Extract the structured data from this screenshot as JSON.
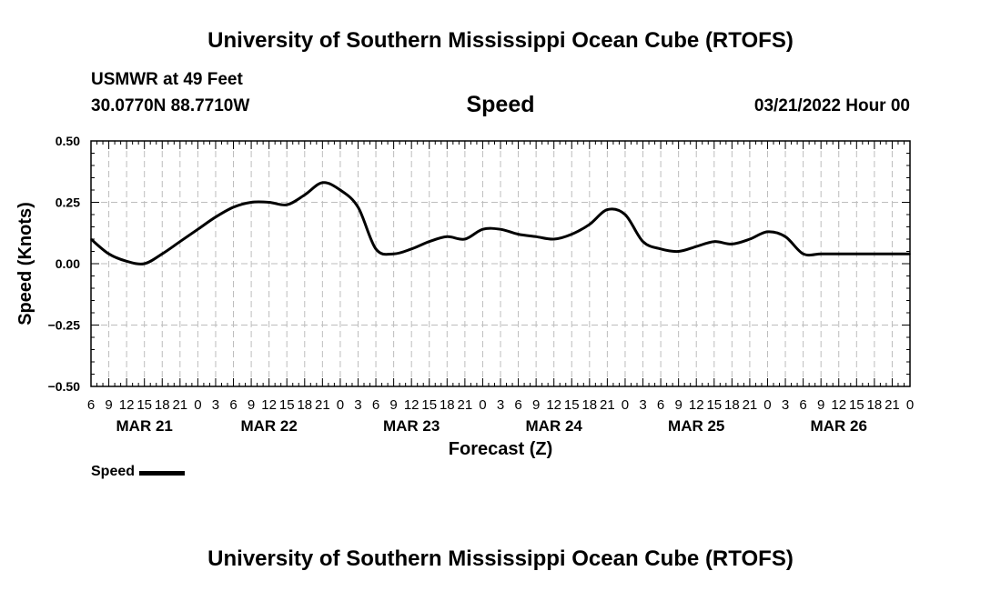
{
  "page": {
    "title_top": "University of Southern Mississippi Ocean Cube (RTOFS)",
    "title_bottom": "University of Southern Mississippi Ocean Cube (RTOFS)",
    "station": "USMWR at 49 Feet",
    "coords": "30.0770N  88.7710W",
    "variable": "Speed",
    "date": "03/21/2022 Hour 00"
  },
  "legend": {
    "label": "Speed",
    "color": "#000000"
  },
  "chart_data": {
    "type": "line",
    "title": "Speed",
    "xlabel": "Forecast (Z)",
    "ylabel": "Speed (Knots)",
    "ylim": [
      -0.5,
      0.5
    ],
    "yticks": [
      "0.50",
      "0.25",
      "0.00",
      "−0.25",
      "−0.50"
    ],
    "xlim_hours": [
      6,
      144
    ],
    "hour_tick_labels": [
      "6",
      "9",
      "12",
      "15",
      "18",
      "21",
      "0",
      "3",
      "6",
      "9",
      "12",
      "15",
      "18",
      "21",
      "0",
      "3",
      "6",
      "9",
      "12",
      "15",
      "18",
      "21",
      "0",
      "3",
      "6",
      "9",
      "12",
      "15",
      "18",
      "21",
      "0",
      "3",
      "6",
      "9",
      "12",
      "15",
      "18",
      "21",
      "0",
      "3",
      "6",
      "9",
      "12",
      "15",
      "18",
      "21",
      "0"
    ],
    "day_labels": [
      {
        "label": "MAR 21",
        "hour": 15
      },
      {
        "label": "MAR 22",
        "hour": 36
      },
      {
        "label": "MAR 23",
        "hour": 60
      },
      {
        "label": "MAR 24",
        "hour": 84
      },
      {
        "label": "MAR 25",
        "hour": 108
      },
      {
        "label": "MAR 26",
        "hour": 132
      }
    ],
    "grid": true,
    "series": [
      {
        "name": "Speed",
        "color": "#000000",
        "hours": [
          6,
          9,
          12,
          15,
          18,
          21,
          24,
          27,
          30,
          33,
          36,
          39,
          42,
          45,
          48,
          51,
          54,
          57,
          60,
          63,
          66,
          69,
          72,
          75,
          78,
          81,
          84,
          87,
          90,
          93,
          96,
          99,
          102,
          105,
          108,
          111,
          114,
          117,
          120,
          123,
          126,
          129,
          132,
          135,
          138,
          141,
          144
        ],
        "values": [
          0.1,
          0.04,
          0.01,
          0.0,
          0.04,
          0.09,
          0.14,
          0.19,
          0.23,
          0.25,
          0.25,
          0.24,
          0.28,
          0.33,
          0.3,
          0.23,
          0.06,
          0.04,
          0.06,
          0.09,
          0.11,
          0.1,
          0.14,
          0.14,
          0.12,
          0.11,
          0.1,
          0.12,
          0.16,
          0.22,
          0.2,
          0.09,
          0.06,
          0.05,
          0.07,
          0.09,
          0.08,
          0.1,
          0.13,
          0.11,
          0.04,
          0.04,
          0.04,
          0.04,
          0.04,
          0.04,
          0.04
        ]
      }
    ]
  }
}
